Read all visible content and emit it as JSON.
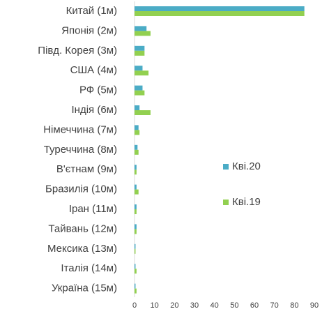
{
  "chart_data": {
    "type": "bar",
    "orientation": "horizontal",
    "categories": [
      "Китай (1м)",
      "Японія (2м)",
      "Півд. Корея (3м)",
      "США (4м)",
      "РФ (5м)",
      "Індія (6м)",
      "Німеччина (7м)",
      "Туреччина (8м)",
      "В'єтнам (9м)",
      "Бразилія (10м)",
      "Іран (11м)",
      "Тайвань (12м)",
      "Мексика (13м)",
      "Італія (14м)",
      "Україна (15м)"
    ],
    "series": [
      {
        "name": "Кві.20",
        "color": "#4bacc6",
        "values": [
          85,
          6,
          5,
          4,
          4,
          2.5,
          2,
          1.5,
          1,
          1,
          1,
          1,
          0.5,
          0.5,
          0.5
        ]
      },
      {
        "name": "Кві.19",
        "color": "#92d050",
        "values": [
          85,
          8,
          5,
          7,
          5,
          8,
          2.5,
          2,
          1,
          2,
          1,
          1,
          0.5,
          1,
          1
        ]
      }
    ],
    "xlim": [
      0,
      90
    ],
    "xticks": [
      0,
      10,
      20,
      30,
      40,
      50,
      60,
      70,
      80,
      90
    ],
    "grid": false
  }
}
